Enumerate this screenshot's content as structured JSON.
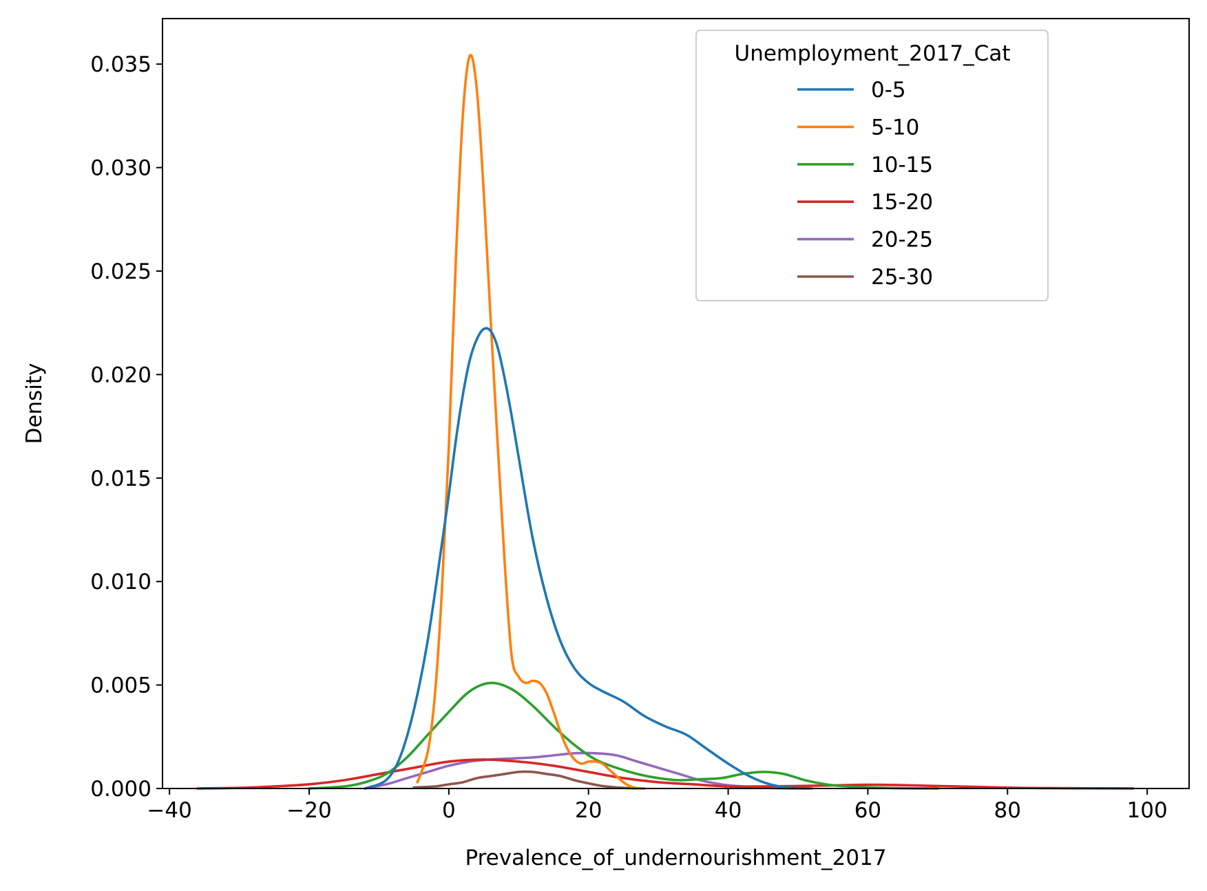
{
  "chart_data": {
    "type": "line",
    "title": "",
    "xlabel": "Prevalence_of_undernourishment_2017",
    "ylabel": "Density",
    "xlim": [
      -41,
      106
    ],
    "ylim": [
      0,
      0.0372
    ],
    "x_ticks": [
      -40,
      -20,
      0,
      20,
      40,
      60,
      80,
      100
    ],
    "x_tick_labels": [
      "−40",
      "−20",
      "0",
      "20",
      "40",
      "60",
      "80",
      "100"
    ],
    "y_ticks": [
      0,
      0.005,
      0.01,
      0.015,
      0.02,
      0.025,
      0.03,
      0.035
    ],
    "y_tick_labels": [
      "0.000",
      "0.005",
      "0.010",
      "0.015",
      "0.020",
      "0.025",
      "0.030",
      "0.035"
    ],
    "grid": false,
    "legend": {
      "title": "Unemployment_2017_Cat",
      "placement": "top-right"
    },
    "series": [
      {
        "name": "0-5",
        "color": "#1f77b4",
        "x": [
          -12,
          -9,
          -7,
          -5,
          -3,
          -1,
          0,
          1,
          2,
          3,
          4,
          5,
          6,
          7,
          8,
          9,
          10,
          12,
          14,
          16,
          18,
          20,
          22,
          25,
          28,
          31,
          34,
          37,
          40,
          43,
          46,
          49,
          52
        ],
        "y": [
          0,
          0.0004,
          0.0015,
          0.0038,
          0.0072,
          0.0118,
          0.0142,
          0.0168,
          0.019,
          0.0207,
          0.0217,
          0.0222,
          0.0221,
          0.0213,
          0.0198,
          0.018,
          0.016,
          0.0121,
          0.0092,
          0.0071,
          0.0058,
          0.0051,
          0.0047,
          0.0042,
          0.0035,
          0.003,
          0.0026,
          0.0019,
          0.0012,
          0.0006,
          0.0002,
          3e-05,
          0
        ]
      },
      {
        "name": "5-10",
        "color": "#ff7f0e",
        "x": [
          -4.5,
          -3,
          -2,
          -1,
          0,
          1,
          2,
          3,
          4,
          5,
          6,
          7,
          8,
          9,
          10,
          11,
          12,
          13,
          14,
          15,
          16,
          17,
          18,
          19,
          20,
          21,
          22,
          23,
          24,
          25,
          26,
          27,
          28
        ],
        "y": [
          0.0003,
          0.0018,
          0.0045,
          0.0095,
          0.0165,
          0.0255,
          0.0325,
          0.0354,
          0.0338,
          0.0288,
          0.0226,
          0.0166,
          0.0109,
          0.0064,
          0.0054,
          0.0051,
          0.0052,
          0.0051,
          0.0046,
          0.0037,
          0.0027,
          0.0019,
          0.0014,
          0.0012,
          0.0013,
          0.0013,
          0.0012,
          0.0009,
          0.0006,
          0.0003,
          0.0001,
          2e-05,
          0
        ]
      },
      {
        "name": "10-15",
        "color": "#2ca02c",
        "x": [
          -20,
          -15,
          -12,
          -9,
          -6,
          -3,
          0,
          3,
          6,
          9,
          12,
          15,
          18,
          21,
          24,
          27,
          30,
          33,
          36,
          39,
          42,
          45,
          48,
          51,
          54,
          57,
          60,
          65,
          70
        ],
        "y": [
          0,
          0.0001,
          0.0003,
          0.0007,
          0.0015,
          0.0026,
          0.0037,
          0.0047,
          0.0051,
          0.0048,
          0.004,
          0.003,
          0.0021,
          0.0014,
          0.001,
          0.0007,
          0.0005,
          0.0004,
          0.00045,
          0.0005,
          0.0007,
          0.0008,
          0.0007,
          0.0004,
          0.0002,
          0.0001,
          5e-05,
          1e-05,
          0
        ]
      },
      {
        "name": "15-20",
        "color": "#d62728",
        "x": [
          -36,
          -30,
          -25,
          -20,
          -15,
          -10,
          -5,
          0,
          5,
          10,
          15,
          20,
          25,
          30,
          35,
          40,
          45,
          50,
          55,
          60,
          65,
          70,
          75,
          80,
          85,
          90,
          95,
          98
        ],
        "y": [
          0,
          3e-05,
          0.0001,
          0.0002,
          0.0004,
          0.0007,
          0.001,
          0.0013,
          0.0014,
          0.0013,
          0.0011,
          0.0008,
          0.0005,
          0.0003,
          0.0002,
          0.0001,
          0.0001,
          0.00012,
          0.00015,
          0.00018,
          0.00016,
          0.00012,
          8e-05,
          4e-05,
          2e-05,
          1e-05,
          5e-06,
          0
        ]
      },
      {
        "name": "20-25",
        "color": "#9467bd",
        "x": [
          -12,
          -9,
          -6,
          -3,
          0,
          3,
          6,
          9,
          12,
          15,
          18,
          21,
          24,
          27,
          30,
          33,
          36,
          39,
          42,
          45,
          48,
          51
        ],
        "y": [
          0,
          0.0002,
          0.0005,
          0.0008,
          0.0011,
          0.0013,
          0.0014,
          0.00145,
          0.0015,
          0.0016,
          0.0017,
          0.0017,
          0.0016,
          0.0013,
          0.001,
          0.0007,
          0.0004,
          0.0002,
          0.0001,
          4e-05,
          1e-05,
          0
        ]
      },
      {
        "name": "25-30",
        "color": "#8c564b",
        "x": [
          -5,
          -2,
          0,
          2,
          4,
          6,
          8,
          10,
          12,
          14,
          16,
          18,
          20,
          22,
          25,
          28
        ],
        "y": [
          5e-05,
          0.0001,
          0.0002,
          0.0003,
          0.0005,
          0.0006,
          0.0007,
          0.0008,
          0.0008,
          0.0007,
          0.0006,
          0.0004,
          0.00025,
          0.00012,
          3e-05,
          0
        ]
      }
    ]
  }
}
